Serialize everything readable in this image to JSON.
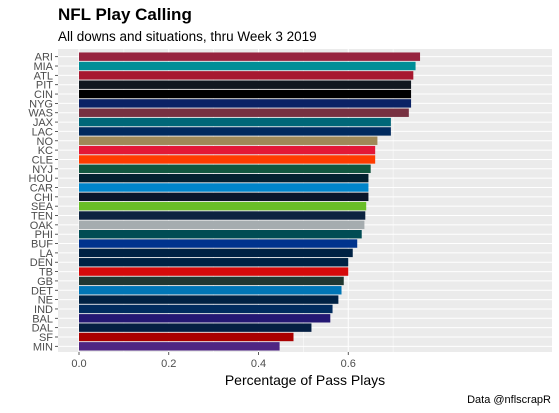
{
  "colors": {
    "panel_bg": "#ebebeb",
    "grid_major": "#ffffff",
    "axis_text": "#4d4d4d"
  },
  "chart_data": {
    "type": "bar",
    "orientation": "horizontal",
    "title": "NFL Play Calling",
    "subtitle": "All downs and situations, thru Week 3 2019",
    "xlabel": "Percentage of Pass Plays",
    "ylabel": "",
    "caption": "Data @nflscrapR",
    "xlim": [
      0,
      0.8
    ],
    "xticks": [
      0.0,
      0.2,
      0.4,
      0.6
    ],
    "xtick_labels": [
      "0.0",
      "0.2",
      "0.4",
      "0.6"
    ],
    "grid": true,
    "categories": [
      "ARI",
      "MIA",
      "ATL",
      "PIT",
      "CIN",
      "NYG",
      "WAS",
      "JAX",
      "LAC",
      "NO",
      "KC",
      "CLE",
      "NYJ",
      "HOU",
      "CAR",
      "CHI",
      "SEA",
      "TEN",
      "OAK",
      "PHI",
      "BUF",
      "LA",
      "DEN",
      "TB",
      "GB",
      "DET",
      "NE",
      "IND",
      "BAL",
      "DAL",
      "SF",
      "MIN"
    ],
    "values": [
      0.76,
      0.75,
      0.745,
      0.74,
      0.74,
      0.74,
      0.735,
      0.695,
      0.695,
      0.665,
      0.66,
      0.66,
      0.65,
      0.645,
      0.645,
      0.645,
      0.64,
      0.638,
      0.636,
      0.63,
      0.62,
      0.61,
      0.6,
      0.6,
      0.59,
      0.585,
      0.578,
      0.565,
      0.56,
      0.518,
      0.478,
      0.447
    ],
    "bar_colors": [
      "#97233F",
      "#008E97",
      "#A71930",
      "#101820",
      "#000000",
      "#0B2265",
      "#773141",
      "#006778",
      "#002A5E",
      "#9F8958",
      "#E31837",
      "#FF3C00",
      "#125740",
      "#03202F",
      "#0085CA",
      "#0B162A",
      "#69BE28",
      "#0C2340",
      "#A5ACAF",
      "#004C54",
      "#00338D",
      "#002244",
      "#002244",
      "#D50A0A",
      "#203731",
      "#0076B6",
      "#002244",
      "#002C5F",
      "#241773",
      "#041E42",
      "#AA0000",
      "#4F2683"
    ]
  }
}
